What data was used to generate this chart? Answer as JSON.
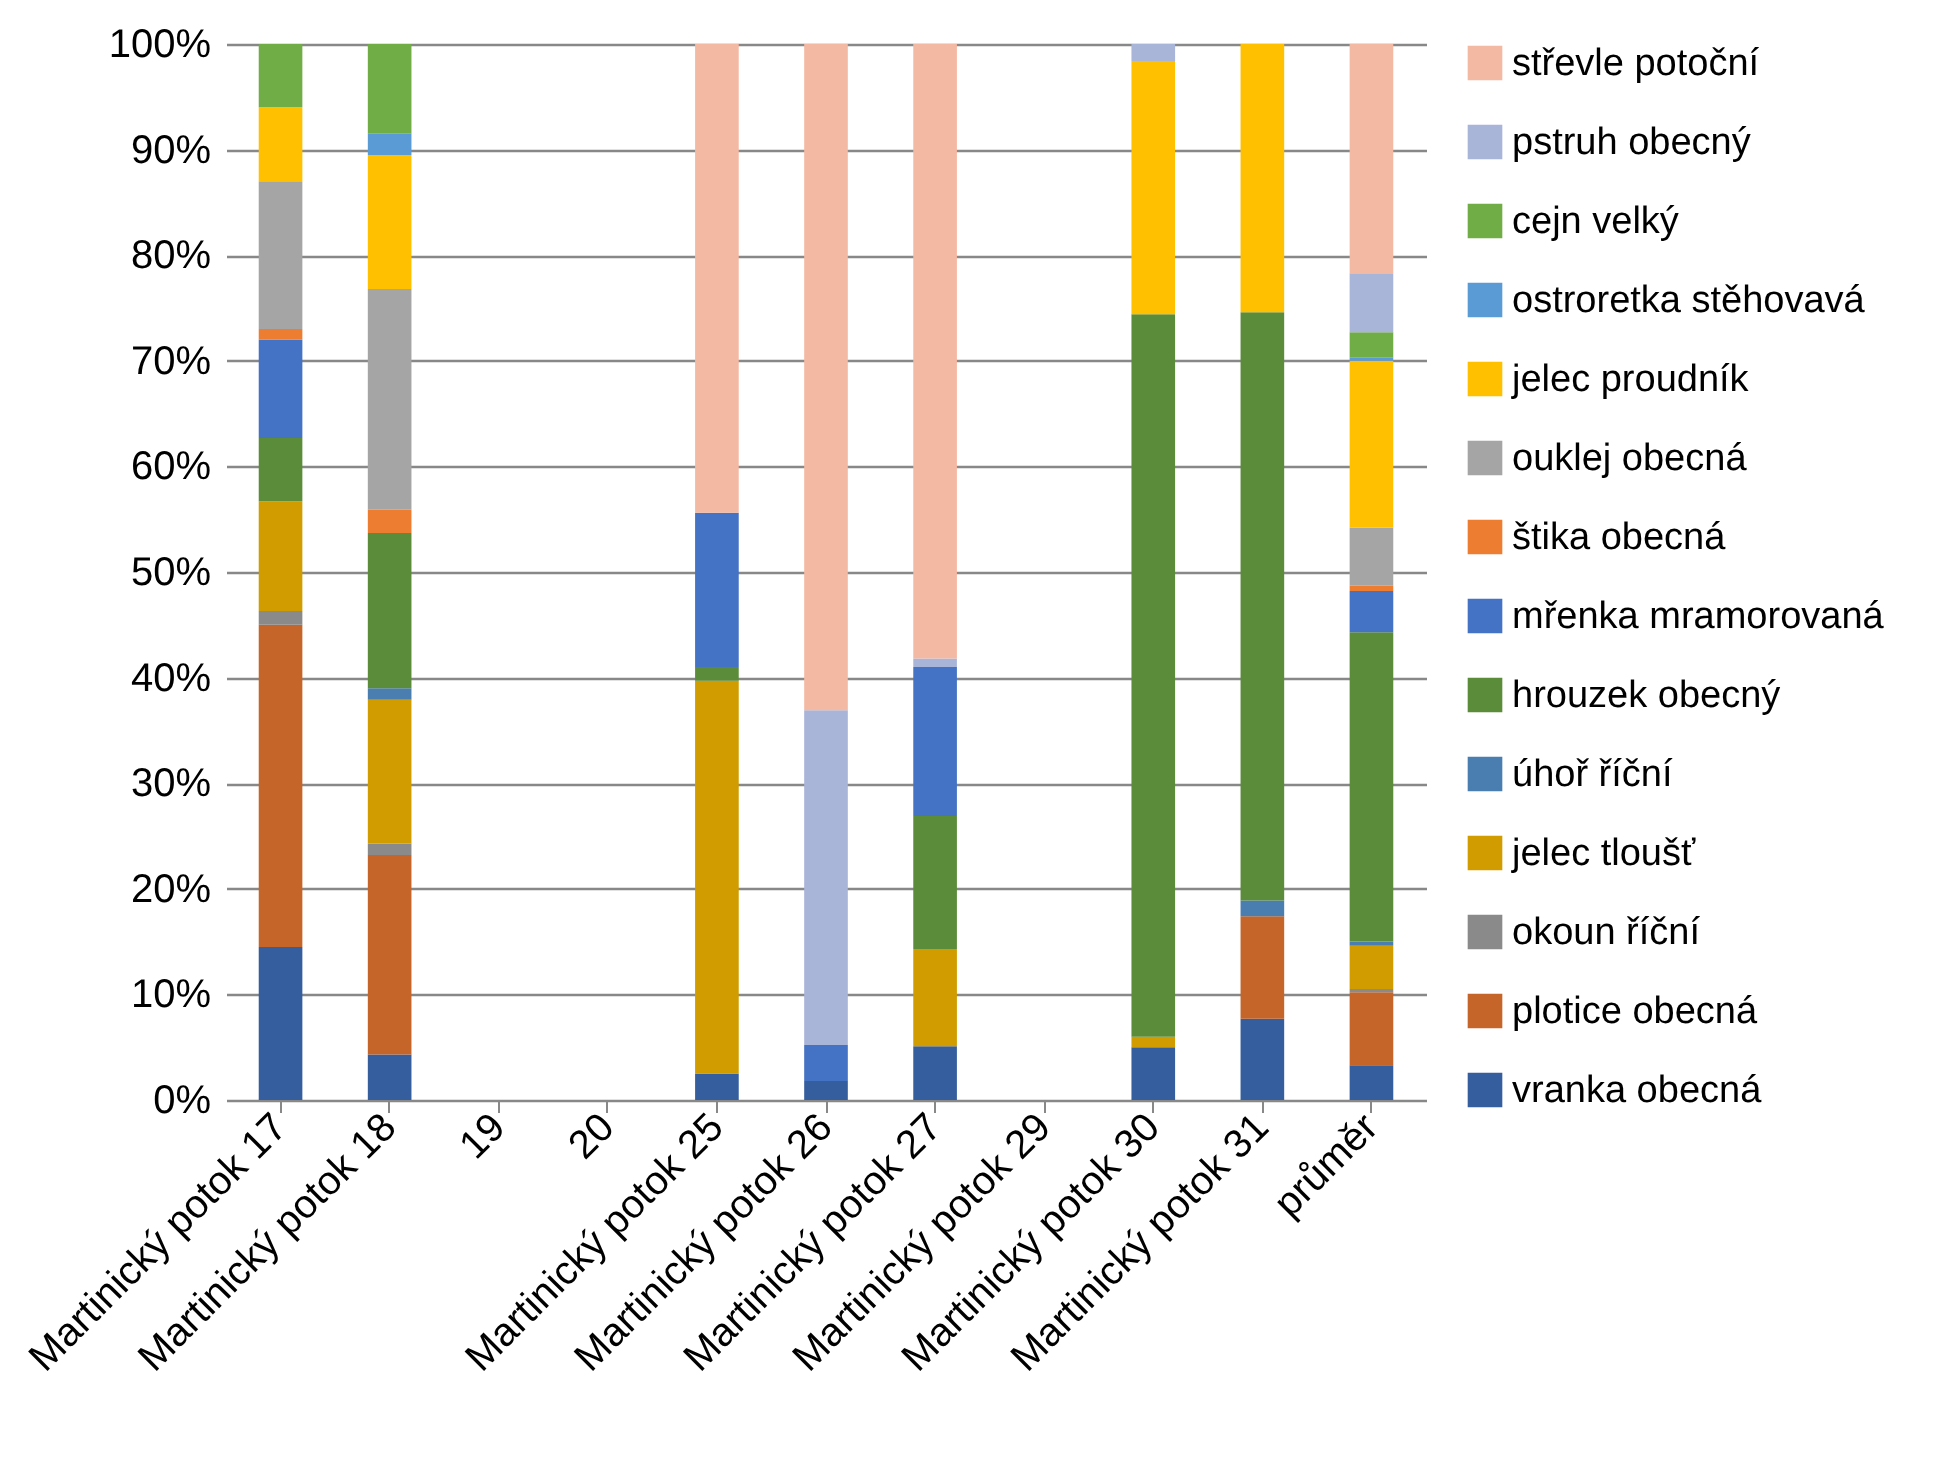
{
  "chart_data": {
    "type": "bar",
    "stacked": true,
    "grid": "y",
    "legend": "right",
    "categories": [
      "Martinický potok 17",
      "Martinický potok 18",
      "19",
      "20",
      "Martinický potok 25",
      "Martinický potok 26",
      "Martinický potok 27",
      "Martinický potok 29",
      "Martinický potok 30",
      "Martinický potok 31",
      "průměr"
    ],
    "ylim": [
      0,
      100
    ],
    "yticks": [
      {
        "value": 0,
        "label": "0%"
      },
      {
        "value": 10,
        "label": "10%"
      },
      {
        "value": 20,
        "label": "20%"
      },
      {
        "value": 30,
        "label": "30%"
      },
      {
        "value": 40,
        "label": "40%"
      },
      {
        "value": 50,
        "label": "50%"
      },
      {
        "value": 60,
        "label": "60%"
      },
      {
        "value": 70,
        "label": "70%"
      },
      {
        "value": 80,
        "label": "80%"
      },
      {
        "value": 90,
        "label": "90%"
      },
      {
        "value": 100,
        "label": "100%"
      }
    ],
    "series": [
      {
        "name": "vranka obecná",
        "color": "#355e9e",
        "values": [
          14.5,
          4.3,
          null,
          null,
          2.5,
          1.8,
          5.1,
          null,
          5,
          7.7,
          3.3
        ]
      },
      {
        "name": "plotice obecná",
        "color": "#c5652a",
        "values": [
          30.5,
          18.9,
          null,
          null,
          null,
          null,
          null,
          null,
          null,
          9.7,
          6.9
        ]
      },
      {
        "name": "okoun říční",
        "color": "#8a8a8a",
        "values": [
          1.3,
          1.1,
          null,
          null,
          null,
          null,
          null,
          null,
          null,
          null,
          0.3
        ]
      },
      {
        "name": "jelec tloušť",
        "color": "#d19c00",
        "values": [
          10.4,
          13.6,
          null,
          null,
          37.2,
          null,
          9.2,
          null,
          1,
          null,
          4.1
        ]
      },
      {
        "name": "úhoř říční",
        "color": "#4a7eb0",
        "values": [
          null,
          1.1,
          null,
          null,
          null,
          null,
          null,
          null,
          null,
          1.5,
          0.4
        ]
      },
      {
        "name": "hrouzek obecný",
        "color": "#5b8c3a",
        "values": [
          6,
          14.7,
          null,
          null,
          1.3,
          null,
          12.6,
          null,
          68.4,
          55.7,
          29.3
        ]
      },
      {
        "name": "mřenka mramorovaná",
        "color": "#4472c4",
        "values": [
          9.3,
          null,
          null,
          null,
          14.6,
          3.4,
          14.1,
          null,
          null,
          null,
          3.9
        ]
      },
      {
        "name": "štika obecná",
        "color": "#ed7d31",
        "values": [
          1,
          2.2,
          null,
          null,
          null,
          null,
          null,
          null,
          null,
          null,
          0.5
        ]
      },
      {
        "name": "ouklej obecná",
        "color": "#a5a5a5",
        "values": [
          14,
          20.9,
          null,
          null,
          null,
          null,
          null,
          null,
          null,
          null,
          5.5
        ]
      },
      {
        "name": "jelec proudník",
        "color": "#ffc000",
        "values": [
          7,
          12.7,
          null,
          null,
          null,
          null,
          null,
          null,
          24,
          25.4,
          15.8
        ]
      },
      {
        "name": "ostroretka stěhovavá",
        "color": "#5b9bd5",
        "values": [
          null,
          2,
          null,
          null,
          null,
          null,
          null,
          null,
          null,
          null,
          0.3
        ]
      },
      {
        "name": "cejn velký",
        "color": "#70ad47",
        "values": [
          6,
          8.5,
          null,
          null,
          null,
          null,
          null,
          null,
          null,
          null,
          2.4
        ]
      },
      {
        "name": "pstruh obecný",
        "color": "#a9b4d9",
        "values": [
          null,
          null,
          null,
          null,
          null,
          31.7,
          0.8,
          null,
          1.6,
          null,
          5.6
        ]
      },
      {
        "name": "střevle potoční",
        "color": "#f4b9a3",
        "values": [
          null,
          null,
          null,
          null,
          44.4,
          63.1,
          58.2,
          null,
          null,
          null,
          21.7
        ]
      }
    ]
  }
}
